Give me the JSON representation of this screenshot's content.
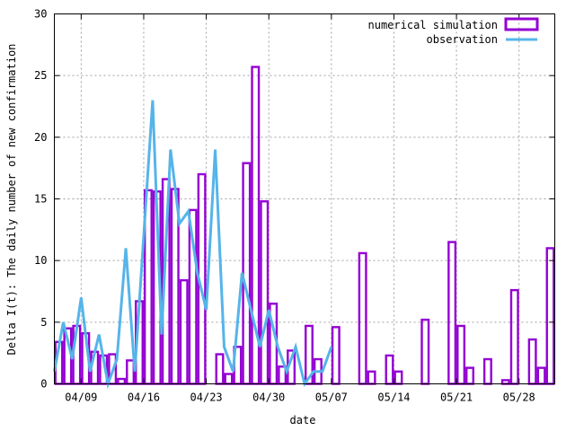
{
  "chart_data": {
    "type": "bar",
    "title": "",
    "xlabel": "date",
    "ylabel": "Delta I(t): The daily number of new confirmation",
    "ylim": [
      0,
      30
    ],
    "y_ticks": [
      "0",
      "5",
      "10",
      "15",
      "20",
      "25",
      "30"
    ],
    "x_start_date": "04/06",
    "x_end_date": "06/01",
    "x_tick_labels": [
      "04/09",
      "04/16",
      "04/23",
      "04/30",
      "05/07",
      "05/14",
      "05/21",
      "05/28"
    ],
    "grid": true,
    "legend_position": "top-right",
    "colors": {
      "simulation": "#9400d3",
      "observation": "#56b4e9"
    },
    "series": [
      {
        "name": "numerical simulation",
        "kind": "bar",
        "values": [
          3.4,
          4.5,
          4.7,
          4.1,
          2.6,
          2.3,
          2.4,
          0.4,
          1.9,
          6.7,
          15.7,
          15.6,
          16.6,
          15.8,
          8.4,
          14.1,
          17.0,
          0,
          2.4,
          0.8,
          3.0,
          17.9,
          25.7,
          14.8,
          6.5,
          1.4,
          2.7,
          0,
          4.7,
          2.0,
          0,
          4.6,
          0,
          0,
          10.6,
          1.0,
          0,
          2.3,
          1.0,
          0,
          0,
          5.2,
          0,
          0,
          11.5,
          4.7,
          1.3,
          0,
          2.0,
          0,
          0.3,
          7.6,
          0,
          3.6,
          1.3,
          11.0
        ]
      },
      {
        "name": "observation",
        "kind": "line",
        "values": [
          1,
          5,
          2,
          7,
          1,
          4,
          0,
          2,
          11,
          1,
          12,
          23,
          4,
          19,
          13,
          14,
          9,
          6,
          19,
          3,
          1,
          9,
          6,
          3,
          6,
          3,
          1,
          3,
          0,
          1,
          1,
          3
        ]
      }
    ]
  }
}
